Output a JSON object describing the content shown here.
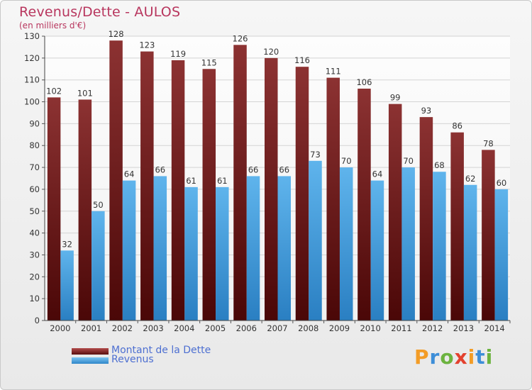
{
  "header": {
    "title": "Revenus/Dette - AULOS",
    "subtitle": "(en milliers d'€)"
  },
  "chart_data": {
    "type": "bar",
    "categories": [
      "2000",
      "2001",
      "2002",
      "2003",
      "2004",
      "2005",
      "2006",
      "2007",
      "2008",
      "2009",
      "2010",
      "2011",
      "2012",
      "2013",
      "2014"
    ],
    "series": [
      {
        "name": "Montant de la Dette",
        "color": "#7a2222",
        "values": [
          102,
          101,
          128,
          123,
          119,
          115,
          126,
          120,
          116,
          111,
          106,
          99,
          93,
          86,
          78
        ]
      },
      {
        "name": "Revenus",
        "color": "#4fa6e4",
        "values": [
          32,
          50,
          64,
          66,
          61,
          61,
          66,
          66,
          73,
          70,
          64,
          70,
          68,
          62,
          60
        ]
      }
    ],
    "ylim": [
      0,
      130
    ],
    "yticks": [
      0,
      10,
      20,
      30,
      40,
      50,
      60,
      70,
      80,
      90,
      100,
      110,
      120,
      130
    ],
    "grid": true,
    "legend": "bottom-left"
  },
  "brand": {
    "letters": [
      "P",
      "r",
      "o",
      "x",
      "i",
      "t",
      "i"
    ],
    "colors": [
      "#f39c26",
      "#3d8ed8",
      "#6cb33f",
      "#e3412e",
      "#f39c26",
      "#3d8ed8",
      "#6cb33f"
    ]
  }
}
